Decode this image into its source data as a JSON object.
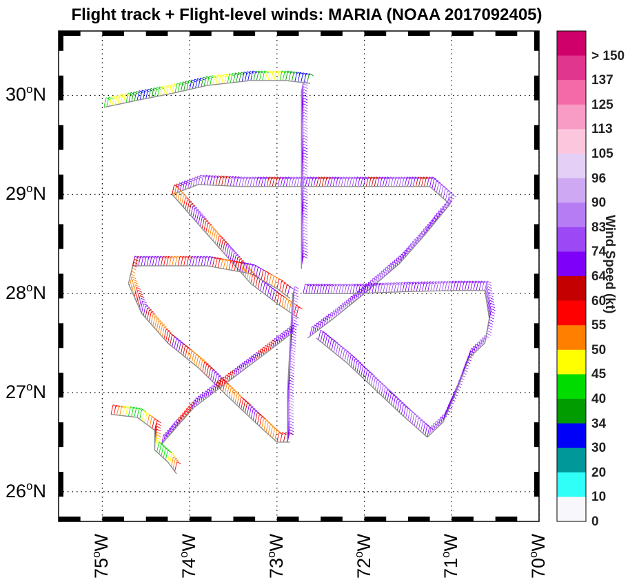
{
  "title": "Flight track + Flight-level winds: MARIA (NOAA 2017092405)",
  "axes": {
    "lat_ticks": [
      {
        "deg": "30",
        "hem": "N",
        "value": 30
      },
      {
        "deg": "29",
        "hem": "N",
        "value": 29
      },
      {
        "deg": "28",
        "hem": "N",
        "value": 28
      },
      {
        "deg": "27",
        "hem": "N",
        "value": 27
      },
      {
        "deg": "26",
        "hem": "N",
        "value": 26
      }
    ],
    "lon_ticks": [
      {
        "deg": "75",
        "hem": "W",
        "value": -75
      },
      {
        "deg": "74",
        "hem": "W",
        "value": -74
      },
      {
        "deg": "73",
        "hem": "W",
        "value": -73
      },
      {
        "deg": "72",
        "hem": "W",
        "value": -72
      },
      {
        "deg": "71",
        "hem": "W",
        "value": -71
      },
      {
        "deg": "70",
        "hem": "W",
        "value": -70
      }
    ],
    "lon_range": [
      -75.5,
      -70.0
    ],
    "lat_range": [
      25.7,
      30.65
    ],
    "grid": "dotted"
  },
  "colorbar": {
    "title": "Wind Speed (kt)",
    "labels": [
      "> 150",
      "137",
      "125",
      "113",
      "105",
      "96",
      "90",
      "83",
      "74",
      "64",
      "60",
      "55",
      "50",
      "45",
      "40",
      "34",
      "30",
      "20",
      "10",
      "0"
    ],
    "colors": [
      "#d0006a",
      "#e0368e",
      "#f46aa8",
      "#f89bc5",
      "#fcc6dd",
      "#e4d0f6",
      "#cfa8f4",
      "#b57cf4",
      "#9c48f4",
      "#7e00f8",
      "#c40000",
      "#ff0000",
      "#ff8000",
      "#ffff00",
      "#00dc00",
      "#009c00",
      "#0000f8",
      "#009898",
      "#30fff8",
      "#f8f8fc"
    ]
  },
  "flight_legs": [
    {
      "speed": 40,
      "path": [
        [
          -74.98,
          29.88
        ],
        [
          -74.6,
          29.95
        ],
        [
          -74.2,
          30.02
        ],
        [
          -73.8,
          30.1
        ],
        [
          -73.3,
          30.15
        ],
        [
          -72.9,
          30.15
        ],
        [
          -72.62,
          30.12
        ]
      ]
    },
    {
      "speed": 80,
      "path": [
        [
          -72.72,
          30.05
        ],
        [
          -72.72,
          29.5
        ],
        [
          -72.72,
          29.0
        ],
        [
          -72.72,
          28.6
        ],
        [
          -72.72,
          28.25
        ]
      ]
    },
    {
      "speed": 70,
      "path": [
        [
          -74.2,
          29.0
        ],
        [
          -73.9,
          29.1
        ],
        [
          -73.4,
          29.08
        ],
        [
          -72.8,
          29.08
        ],
        [
          -72.2,
          29.08
        ],
        [
          -71.6,
          29.08
        ],
        [
          -71.25,
          29.08
        ],
        [
          -71.02,
          28.9
        ]
      ]
    },
    {
      "speed": 74,
      "path": [
        [
          -71.02,
          28.9
        ],
        [
          -71.3,
          28.6
        ],
        [
          -71.6,
          28.3
        ],
        [
          -72.0,
          28.0
        ],
        [
          -72.35,
          27.75
        ],
        [
          -72.65,
          27.55
        ]
      ]
    },
    {
      "speed": 60,
      "path": [
        [
          -74.2,
          29.0
        ],
        [
          -73.9,
          28.7
        ],
        [
          -73.6,
          28.4
        ],
        [
          -73.3,
          28.1
        ],
        [
          -73.0,
          27.9
        ],
        [
          -72.75,
          27.75
        ]
      ]
    },
    {
      "speed": 62,
      "path": [
        [
          -74.65,
          28.28
        ],
        [
          -74.2,
          28.28
        ],
        [
          -73.8,
          28.28
        ],
        [
          -73.3,
          28.2
        ],
        [
          -73.0,
          28.05
        ],
        [
          -72.85,
          27.95
        ]
      ]
    },
    {
      "speed": 58,
      "path": [
        [
          -74.65,
          28.28
        ],
        [
          -74.7,
          28.1
        ],
        [
          -74.55,
          27.8
        ],
        [
          -74.25,
          27.5
        ],
        [
          -73.9,
          27.25
        ],
        [
          -73.55,
          26.95
        ],
        [
          -73.25,
          26.7
        ],
        [
          -73.0,
          26.5
        ],
        [
          -72.85,
          26.5
        ]
      ]
    },
    {
      "speed": 80,
      "path": [
        [
          -72.88,
          26.5
        ],
        [
          -72.88,
          27.0
        ],
        [
          -72.85,
          27.5
        ],
        [
          -72.82,
          28.0
        ]
      ]
    },
    {
      "speed": 66,
      "path": [
        [
          -74.32,
          26.48
        ],
        [
          -73.95,
          26.85
        ],
        [
          -73.5,
          27.15
        ],
        [
          -73.05,
          27.45
        ],
        [
          -72.8,
          27.62
        ]
      ]
    },
    {
      "speed": 72,
      "path": [
        [
          -72.7,
          28.0
        ],
        [
          -72.1,
          28.0
        ],
        [
          -71.5,
          28.02
        ],
        [
          -70.98,
          28.03
        ],
        [
          -70.62,
          28.03
        ],
        [
          -70.57,
          27.75
        ],
        [
          -70.62,
          27.5
        ],
        [
          -70.8,
          27.35
        ],
        [
          -70.95,
          27.0
        ],
        [
          -71.1,
          26.7
        ],
        [
          -71.28,
          26.55
        ]
      ]
    },
    {
      "speed": 72,
      "path": [
        [
          -71.28,
          26.55
        ],
        [
          -71.6,
          26.8
        ],
        [
          -71.9,
          27.05
        ],
        [
          -72.2,
          27.3
        ],
        [
          -72.55,
          27.55
        ]
      ]
    },
    {
      "speed": 50,
      "path": [
        [
          -74.9,
          26.78
        ],
        [
          -74.6,
          26.75
        ],
        [
          -74.4,
          26.62
        ],
        [
          -74.4,
          26.42
        ],
        [
          -74.25,
          26.3
        ],
        [
          -74.15,
          26.18
        ]
      ]
    }
  ]
}
